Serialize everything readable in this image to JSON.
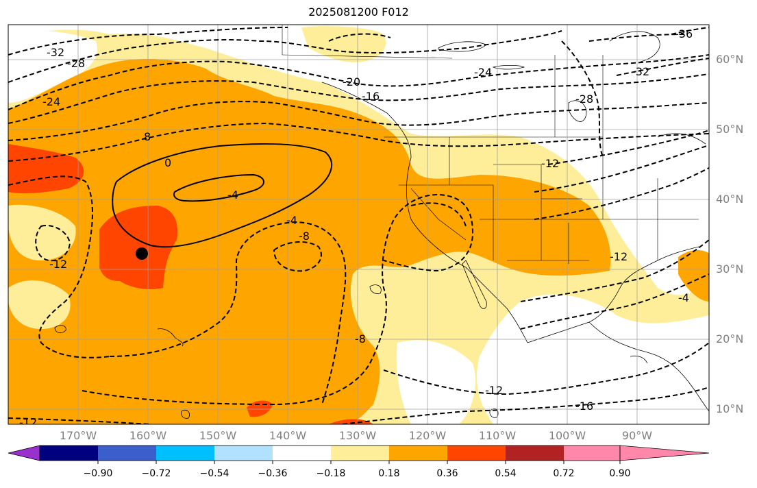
{
  "title": "2025081200 F012",
  "lat_labels": [
    "60°N",
    "50°N",
    "40°N",
    "30°N",
    "20°N",
    "10°N"
  ],
  "lon_labels": [
    "170°W",
    "160°W",
    "150°W",
    "140°W",
    "130°W",
    "120°W",
    "110°W",
    "100°W",
    "90°W"
  ],
  "colorbar": {
    "colors": [
      "#9932cc",
      "#000080",
      "#3a5fcd",
      "#00bfff",
      "#b0e2ff",
      "#ffffff",
      "#ffee99",
      "#ffa500",
      "#ff4500",
      "#b22222",
      "#ff88aa"
    ],
    "ticks": [
      "−0.90",
      "−0.72",
      "−0.54",
      "−0.36",
      "−0.18",
      "0.18",
      "0.36",
      "0.54",
      "0.72",
      "0.90"
    ]
  },
  "contour_labels": [
    "-32",
    "-28",
    "-24",
    "-36",
    "-32",
    "-24",
    "-20",
    "-16",
    "-28",
    "8",
    "0",
    "-4",
    "-4",
    "-12",
    "-8",
    "-12",
    "-8",
    "-4",
    "-12",
    "-16",
    "-12",
    "-12"
  ],
  "marker": "filled-circle"
}
